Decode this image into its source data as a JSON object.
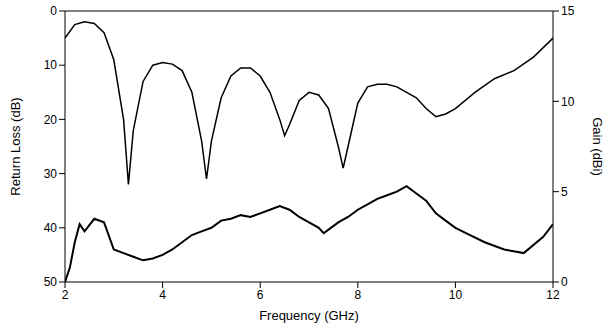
{
  "chart_data": {
    "type": "line",
    "x_label": "Frequency (GHz)",
    "y_label": "Return Loss (dB)",
    "y2_label": "Gain (dBi)",
    "xlim": [
      2,
      12
    ],
    "xticks": [
      2,
      4,
      6,
      8,
      10,
      12
    ],
    "ylim": [
      50,
      0
    ],
    "yticks": [
      0,
      10,
      20,
      30,
      40,
      50
    ],
    "y2lim": [
      0,
      15
    ],
    "y2ticks": [
      0,
      5,
      10,
      15
    ],
    "grid": false,
    "series": [
      {
        "color": "#000000",
        "x": [
          2.0,
          2.2,
          2.4,
          2.6,
          2.8,
          3.0,
          3.2,
          3.3,
          3.4,
          3.6,
          3.8,
          4.0,
          4.2,
          4.4,
          4.6,
          4.8,
          4.9,
          5.0,
          5.2,
          5.4,
          5.6,
          5.8,
          6.0,
          6.2,
          6.4,
          6.5,
          6.6,
          6.8,
          7.0,
          7.2,
          7.4,
          7.6,
          7.7,
          7.8,
          8.0,
          8.2,
          8.4,
          8.6,
          8.8,
          9.0,
          9.2,
          9.4,
          9.6,
          9.8,
          10.0,
          10.4,
          10.8,
          11.2,
          11.6,
          12.0
        ],
        "values": [
          5,
          2.5,
          2,
          2.3,
          4,
          9,
          20,
          32,
          22,
          13,
          10,
          9.5,
          9.8,
          11,
          15,
          24,
          31,
          24,
          16,
          12,
          10.5,
          10.5,
          12,
          15,
          20,
          23,
          21,
          16.5,
          15,
          15.5,
          18,
          25,
          29,
          25,
          17,
          14,
          13.5,
          13.5,
          14,
          15,
          16,
          18,
          19.5,
          19,
          18,
          15,
          12.5,
          11,
          8.5,
          5
        ]
      },
      {
        "color": "#000000",
        "axis": "y2",
        "x": [
          2.0,
          2.1,
          2.2,
          2.3,
          2.4,
          2.6,
          2.8,
          3.0,
          3.2,
          3.4,
          3.6,
          3.8,
          4.0,
          4.2,
          4.4,
          4.6,
          4.8,
          5.0,
          5.2,
          5.4,
          5.6,
          5.8,
          6.0,
          6.2,
          6.4,
          6.6,
          6.8,
          7.0,
          7.2,
          7.3,
          7.4,
          7.6,
          7.8,
          8.0,
          8.2,
          8.4,
          8.6,
          8.8,
          9.0,
          9.2,
          9.4,
          9.6,
          9.8,
          10.0,
          10.3,
          10.6,
          11.0,
          11.4,
          11.8,
          12.0
        ],
        "values": [
          0,
          0.8,
          2.2,
          3.2,
          2.8,
          3.5,
          3.3,
          1.8,
          1.6,
          1.4,
          1.2,
          1.3,
          1.5,
          1.8,
          2.2,
          2.6,
          2.8,
          3,
          3.4,
          3.5,
          3.7,
          3.6,
          3.8,
          4,
          4.2,
          4,
          3.6,
          3.3,
          3,
          2.7,
          2.9,
          3.3,
          3.6,
          4,
          4.3,
          4.6,
          4.8,
          5,
          5.3,
          4.9,
          4.5,
          3.8,
          3.4,
          3,
          2.6,
          2.2,
          1.8,
          1.6,
          2.5,
          3.2
        ]
      }
    ]
  }
}
